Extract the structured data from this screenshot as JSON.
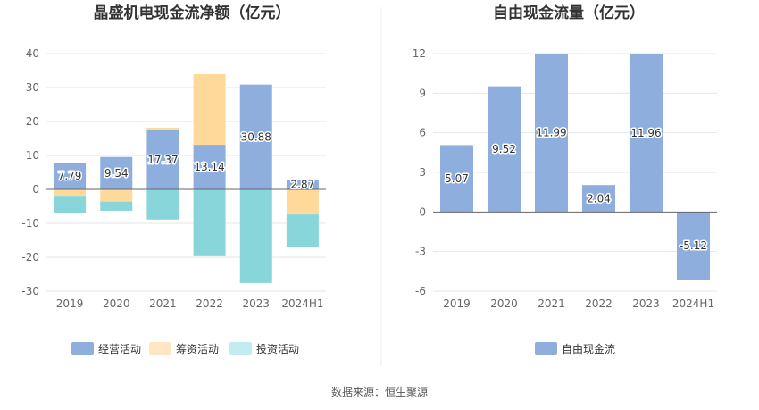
{
  "source": "数据来源：恒生聚源",
  "chart_data": [
    {
      "type": "bar",
      "title": "晶盛机电现金流净额（亿元）",
      "categories": [
        "2019",
        "2020",
        "2021",
        "2022",
        "2023",
        "2024H1"
      ],
      "ylim": [
        -30,
        40
      ],
      "yticks": [
        40,
        30,
        20,
        10,
        0,
        -10,
        -20,
        -30
      ],
      "stacked": true,
      "grid": true,
      "legend_position": "bottom",
      "series": [
        {
          "name": "经营活动",
          "color": "#8eaedd",
          "values": [
            7.79,
            9.54,
            17.37,
            13.14,
            30.88,
            2.87
          ],
          "labels": [
            "7.79",
            "9.54",
            "17.37",
            "13.14",
            "30.88",
            "2.87"
          ]
        },
        {
          "name": "筹资活动",
          "color": "#ffd99a",
          "values": [
            -1.9,
            -3.6,
            0.8,
            20.8,
            0,
            -7.4
          ]
        },
        {
          "name": "投资活动",
          "color": "#88d6d9",
          "values": [
            -5.2,
            -2.7,
            -8.9,
            -19.7,
            -27.6,
            -9.6
          ]
        }
      ],
      "legend_swatch_colors": [
        "#8eaedd",
        "#fee7c2",
        "#c2ecee"
      ]
    },
    {
      "type": "bar",
      "title": "自由现金流量（亿元）",
      "categories": [
        "2019",
        "2020",
        "2021",
        "2022",
        "2023",
        "2024H1"
      ],
      "ylim": [
        -6,
        12
      ],
      "yticks": [
        12,
        9,
        6,
        3,
        0,
        -3,
        -6
      ],
      "grid": true,
      "legend_position": "bottom",
      "series": [
        {
          "name": "自由现金流",
          "color": "#8eaedd",
          "values": [
            5.07,
            9.52,
            11.99,
            2.04,
            11.96,
            -5.12
          ],
          "labels": [
            "5.07",
            "9.52",
            "11.99",
            "2.04",
            "11.96",
            "-5.12"
          ]
        }
      ]
    }
  ]
}
